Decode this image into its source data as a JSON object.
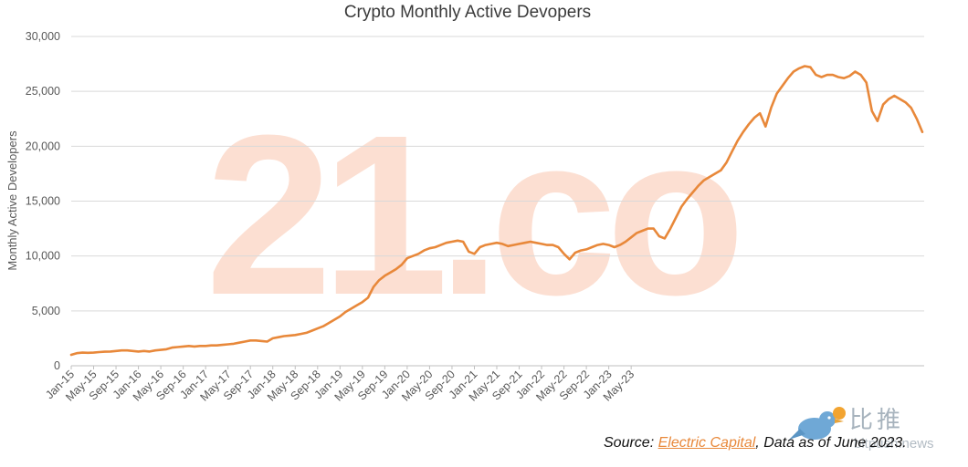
{
  "chart_data": {
    "type": "line",
    "title": "Crypto Monthly Active Devopers",
    "xlabel": "",
    "ylabel": "Monthly Active Developers",
    "ylim": [
      0,
      30000
    ],
    "yticks": [
      0,
      5000,
      10000,
      15000,
      20000,
      25000,
      30000
    ],
    "ytick_labels": [
      "0",
      "5,000",
      "10,000",
      "15,000",
      "20,000",
      "25,000",
      "30,000"
    ],
    "xtick_labels": [
      "Jan-15",
      "May-15",
      "Sep-15",
      "Jan-16",
      "May-16",
      "Sep-16",
      "Jan-17",
      "May-17",
      "Sep-17",
      "Jan-18",
      "May-18",
      "Sep-18",
      "Jan-19",
      "May-19",
      "Sep-19",
      "Jan-20",
      "May-20",
      "Sep-20",
      "Jan-21",
      "May-21",
      "Sep-21",
      "Jan-22",
      "May-22",
      "Sep-22",
      "Jan-23",
      "May-23"
    ],
    "grid": true,
    "legend": "none",
    "series": [
      {
        "name": "Monthly Active Developers",
        "color": "#e8883a",
        "points": [
          [
            0,
            1000
          ],
          [
            1,
            1150
          ],
          [
            2,
            1200
          ],
          [
            3,
            1180
          ],
          [
            4,
            1200
          ],
          [
            5,
            1250
          ],
          [
            6,
            1280
          ],
          [
            7,
            1300
          ],
          [
            8,
            1350
          ],
          [
            9,
            1400
          ],
          [
            10,
            1400
          ],
          [
            11,
            1350
          ],
          [
            12,
            1300
          ],
          [
            13,
            1350
          ],
          [
            14,
            1300
          ],
          [
            15,
            1400
          ],
          [
            16,
            1450
          ],
          [
            17,
            1500
          ],
          [
            18,
            1650
          ],
          [
            19,
            1700
          ],
          [
            20,
            1750
          ],
          [
            21,
            1800
          ],
          [
            22,
            1750
          ],
          [
            23,
            1800
          ],
          [
            24,
            1800
          ],
          [
            25,
            1850
          ],
          [
            26,
            1850
          ],
          [
            27,
            1900
          ],
          [
            28,
            1950
          ],
          [
            29,
            2000
          ],
          [
            30,
            2100
          ],
          [
            31,
            2200
          ],
          [
            32,
            2300
          ],
          [
            33,
            2300
          ],
          [
            34,
            2250
          ],
          [
            35,
            2200
          ],
          [
            36,
            2500
          ],
          [
            37,
            2600
          ],
          [
            38,
            2700
          ],
          [
            39,
            2750
          ],
          [
            40,
            2800
          ],
          [
            41,
            2900
          ],
          [
            42,
            3000
          ],
          [
            43,
            3200
          ],
          [
            44,
            3400
          ],
          [
            45,
            3600
          ],
          [
            46,
            3900
          ],
          [
            47,
            4200
          ],
          [
            48,
            4500
          ],
          [
            49,
            4900
          ],
          [
            50,
            5200
          ],
          [
            51,
            5500
          ],
          [
            52,
            5800
          ],
          [
            53,
            6200
          ],
          [
            54,
            7200
          ],
          [
            55,
            7800
          ],
          [
            56,
            8200
          ],
          [
            57,
            8500
          ],
          [
            58,
            8800
          ],
          [
            59,
            9200
          ],
          [
            60,
            9800
          ],
          [
            61,
            10000
          ],
          [
            62,
            10200
          ],
          [
            63,
            10500
          ],
          [
            64,
            10700
          ],
          [
            65,
            10800
          ],
          [
            66,
            11000
          ],
          [
            67,
            11200
          ],
          [
            68,
            11300
          ],
          [
            69,
            11400
          ],
          [
            70,
            11300
          ],
          [
            71,
            10400
          ],
          [
            72,
            10200
          ],
          [
            73,
            10800
          ],
          [
            74,
            11000
          ],
          [
            75,
            11100
          ],
          [
            76,
            11200
          ],
          [
            77,
            11100
          ],
          [
            78,
            10900
          ],
          [
            79,
            11000
          ],
          [
            80,
            11100
          ],
          [
            81,
            11200
          ],
          [
            82,
            11300
          ],
          [
            83,
            11200
          ],
          [
            84,
            11100
          ],
          [
            85,
            11000
          ],
          [
            86,
            11000
          ],
          [
            87,
            10800
          ],
          [
            88,
            10200
          ],
          [
            89,
            9700
          ],
          [
            90,
            10300
          ],
          [
            91,
            10500
          ],
          [
            92,
            10600
          ],
          [
            93,
            10800
          ],
          [
            94,
            11000
          ],
          [
            95,
            11100
          ],
          [
            96,
            11000
          ],
          [
            97,
            10800
          ],
          [
            98,
            11000
          ],
          [
            99,
            11300
          ],
          [
            100,
            11700
          ],
          [
            101,
            12100
          ],
          [
            102,
            12300
          ],
          [
            103,
            12500
          ],
          [
            104,
            12500
          ],
          [
            105,
            11800
          ],
          [
            106,
            11600
          ],
          [
            107,
            12500
          ],
          [
            108,
            13500
          ],
          [
            109,
            14500
          ],
          [
            110,
            15200
          ],
          [
            111,
            15800
          ],
          [
            112,
            16400
          ],
          [
            113,
            16900
          ],
          [
            114,
            17200
          ],
          [
            115,
            17500
          ],
          [
            116,
            17800
          ],
          [
            117,
            18500
          ],
          [
            118,
            19500
          ],
          [
            119,
            20500
          ],
          [
            120,
            21300
          ],
          [
            121,
            22000
          ],
          [
            122,
            22600
          ],
          [
            123,
            23000
          ],
          [
            124,
            21800
          ],
          [
            125,
            23500
          ],
          [
            126,
            24800
          ],
          [
            127,
            25500
          ],
          [
            128,
            26200
          ],
          [
            129,
            26800
          ],
          [
            130,
            27100
          ],
          [
            131,
            27300
          ],
          [
            132,
            27200
          ],
          [
            133,
            26500
          ],
          [
            134,
            26300
          ],
          [
            135,
            26500
          ],
          [
            136,
            26500
          ],
          [
            137,
            26300
          ],
          [
            138,
            26200
          ],
          [
            139,
            26400
          ],
          [
            140,
            26800
          ],
          [
            141,
            26500
          ],
          [
            142,
            25800
          ],
          [
            143,
            23200
          ],
          [
            144,
            22300
          ],
          [
            145,
            23800
          ],
          [
            146,
            24300
          ],
          [
            147,
            24600
          ],
          [
            148,
            24300
          ],
          [
            149,
            24000
          ],
          [
            150,
            23500
          ],
          [
            151,
            22500
          ],
          [
            152,
            21300
          ]
        ]
      }
    ],
    "watermark": "21.co",
    "annotation": {
      "prefix": "Source: ",
      "link_text": "Electric Capital",
      "suffix": ", Data as of June 2023."
    }
  },
  "badge": {
    "cn_text": "比推",
    "sub_text": "bitpush.news"
  }
}
